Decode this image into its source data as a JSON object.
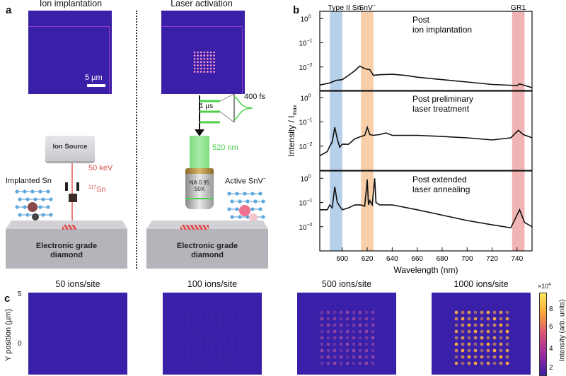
{
  "panel_a": {
    "letter": "a",
    "left_title": "Ion implantation",
    "right_title": "Laser activation",
    "scale_bar": "5 µm",
    "ion_source_label": "Ion Source",
    "energy_label": "50 keV",
    "isotope_mass": "117",
    "isotope_symbol": "Sn",
    "implanted_label": "Implanted Sn",
    "active_label": "Active SnV",
    "active_label_sup": "−",
    "pulse_period": "1 µs",
    "pulse_width": "400 fs",
    "laser_wavelength": "520 nm",
    "objective_na": "NA 0.95",
    "objective_mag": "50X",
    "substrate_line1": "Electronic grade",
    "substrate_line2": "diamond",
    "colors": {
      "ion": "#d9534f",
      "laser": "#4cd04c",
      "pl_bg": "#3a1fa8"
    }
  },
  "panel_b": {
    "letter": "b",
    "band_labels": [
      "Type II Sn",
      "SnV",
      "GR1"
    ],
    "band_label_sup": "−",
    "ylabel": "Intensity / I",
    "ylabel_sub": "max",
    "xlabel": "Wavelength (nm)",
    "ytick_labels": [
      "10",
      "10",
      "10"
    ],
    "ytick_exps": [
      "0",
      "−1",
      "−2"
    ],
    "xtick_labels": [
      "600",
      "620",
      "640",
      "660",
      "680",
      "700",
      "720",
      "740"
    ],
    "subplot_titles": [
      [
        "Post",
        "ion implantation"
      ],
      [
        "Post preliminary",
        "laser treatment"
      ],
      [
        "Post extended",
        "laser annealing"
      ]
    ]
  },
  "chart_data": {
    "type": "line",
    "title": "",
    "xlabel": "Wavelength (nm)",
    "ylabel": "Intensity / I_max",
    "xlim": [
      582,
      752
    ],
    "ylim": [
      0.001,
      1.5
    ],
    "yscale": "log",
    "bands": [
      {
        "name": "Type II Sn",
        "range": [
          590,
          600
        ],
        "color": "#a9c8e6"
      },
      {
        "name": "SnV−",
        "range": [
          615,
          625
        ],
        "color": "#f7c79a"
      },
      {
        "name": "GR1",
        "range": [
          736,
          746
        ],
        "color": "#efa7a7"
      }
    ],
    "series": [
      {
        "name": "Post ion implantation",
        "x": [
          582,
          590,
          595,
          600,
          605,
          610,
          614,
          617,
          620,
          622,
          625,
          630,
          640,
          650,
          660,
          680,
          700,
          720,
          740,
          742,
          752
        ],
        "values": [
          0.0018,
          0.0022,
          0.0028,
          0.003,
          0.0045,
          0.007,
          0.011,
          0.009,
          0.008,
          0.0078,
          0.0045,
          0.0048,
          0.005,
          0.0045,
          0.0038,
          0.003,
          0.0024,
          0.0019,
          0.0017,
          0.002,
          0.0014
        ]
      },
      {
        "name": "Post preliminary laser treatment",
        "x": [
          582,
          588,
          590,
          592,
          594,
          596,
          598,
          600,
          605,
          610,
          615,
          618,
          620,
          622,
          625,
          630,
          635,
          640,
          660,
          680,
          700,
          720,
          735,
          741,
          745,
          752
        ],
        "values": [
          0.004,
          0.006,
          0.01,
          0.015,
          0.06,
          0.02,
          0.009,
          0.012,
          0.012,
          0.02,
          0.025,
          0.028,
          0.06,
          0.03,
          0.028,
          0.03,
          0.035,
          0.028,
          0.028,
          0.025,
          0.022,
          0.018,
          0.022,
          0.045,
          0.03,
          0.022
        ]
      },
      {
        "name": "Post extended laser annealing",
        "x": [
          582,
          588,
          590,
          592,
          594,
          596,
          598,
          600,
          605,
          610,
          615,
          618,
          620,
          621,
          622,
          624,
          626,
          627,
          630,
          640,
          660,
          680,
          700,
          720,
          735,
          742,
          746,
          752
        ],
        "values": [
          0.05,
          0.05,
          0.08,
          0.06,
          0.45,
          0.1,
          0.07,
          0.05,
          0.06,
          0.08,
          0.08,
          0.07,
          0.9,
          0.08,
          0.12,
          0.08,
          1.0,
          0.1,
          0.08,
          0.08,
          0.05,
          0.03,
          0.018,
          0.012,
          0.009,
          0.05,
          0.015,
          0.01
        ]
      }
    ]
  },
  "panel_c": {
    "letter": "c",
    "ylabel": "Y position (µm)",
    "ytick_labels": [
      "5",
      "0"
    ],
    "titles": [
      "50 ions/site",
      "100 ions/site",
      "500 ions/site",
      "1000 ions/site"
    ],
    "brightness": [
      0.05,
      0.12,
      0.45,
      0.8
    ],
    "colorbar_label": "Intensity (arb. units)",
    "colorbar_multiplier": "×10",
    "colorbar_exp": "4",
    "colorbar_ticks": [
      "8",
      "6",
      "4",
      "2"
    ]
  }
}
